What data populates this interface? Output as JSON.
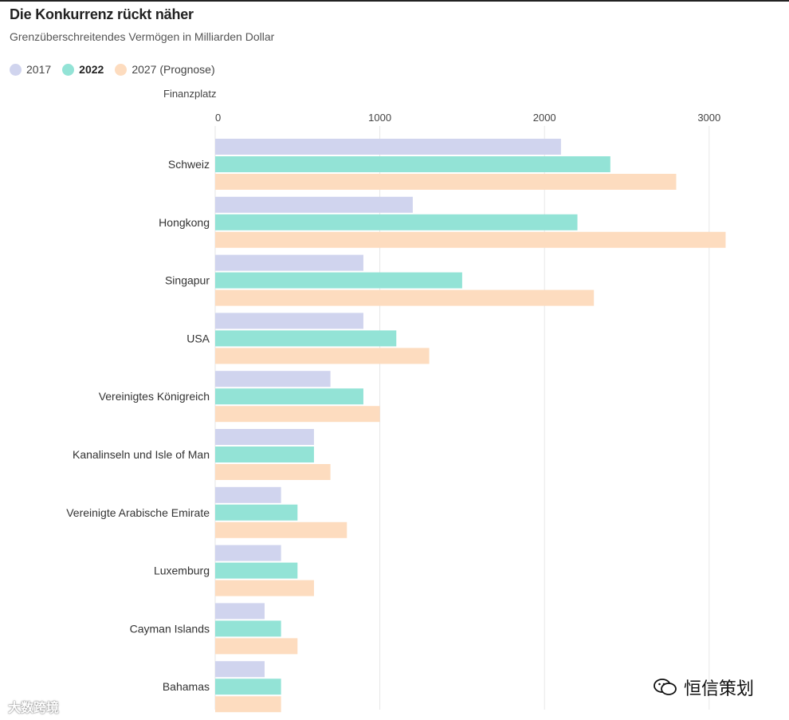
{
  "title": "Die Konkurrenz rückt näher",
  "subtitle": "Grenzüberschreitendes Vermögen in Milliarden Dollar",
  "axis_title": "Finanzplatz",
  "watermark_left": "大数跨境",
  "watermark_right": "恒信策划",
  "colors": {
    "2017": "#d0d4ee",
    "2022": "#93e3d6",
    "2027": "#fddcbf",
    "grid": "#e6e6e6",
    "text": "#333333"
  },
  "chart_data": {
    "type": "bar",
    "orientation": "horizontal",
    "title": "Die Konkurrenz rückt näher",
    "subtitle": "Grenzüberschreitendes Vermögen in Milliarden Dollar",
    "ylabel": "Finanzplatz",
    "xlim": [
      0,
      3100
    ],
    "xticks": [
      0,
      1000,
      2000,
      3000
    ],
    "grid": "vertical",
    "legend_position": "top-left",
    "categories": [
      "Schweiz",
      "Hongkong",
      "Singapur",
      "USA",
      "Vereinigtes Königreich",
      "Kanalinseln und Isle of Man",
      "Vereinigte Arabische Emirate",
      "Luxemburg",
      "Cayman Islands",
      "Bahamas"
    ],
    "series": [
      {
        "name": "2017",
        "color": "#d0d4ee",
        "values": [
          2100,
          1200,
          900,
          900,
          700,
          600,
          400,
          400,
          300,
          300
        ]
      },
      {
        "name": "2022",
        "color": "#93e3d6",
        "values": [
          2400,
          2200,
          1500,
          1100,
          900,
          600,
          500,
          500,
          400,
          400
        ]
      },
      {
        "name": "2027 (Prognose)",
        "color": "#fddcbf",
        "values": [
          2800,
          3100,
          2300,
          1300,
          1000,
          700,
          800,
          600,
          500,
          400
        ]
      }
    ]
  }
}
